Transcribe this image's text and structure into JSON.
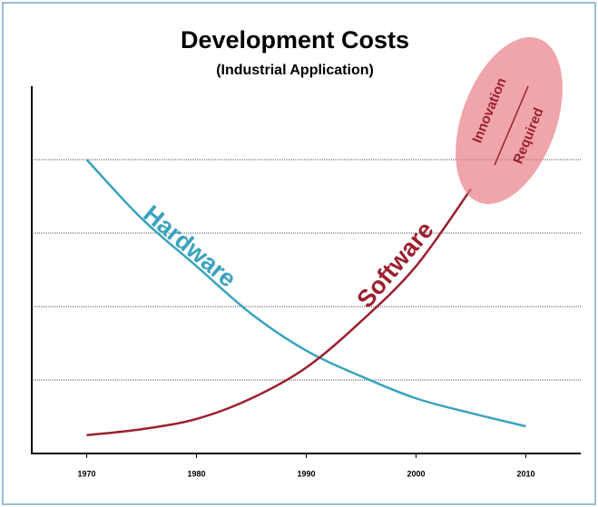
{
  "chart_data": {
    "type": "line",
    "title": "Development Costs",
    "subtitle": "(Industrial Application)",
    "x": [
      1970,
      1975,
      1980,
      1985,
      1990,
      1995,
      2000,
      2005,
      2010
    ],
    "series": [
      {
        "name": "Hardware",
        "color": "#3aa3bd",
        "values": [
          4.0,
          3.2,
          2.55,
          1.9,
          1.4,
          1.05,
          0.75,
          0.55,
          0.37
        ]
      },
      {
        "name": "Software",
        "color": "#9b2030",
        "values": [
          0.25,
          0.33,
          0.47,
          0.75,
          1.17,
          1.8,
          2.55,
          3.6,
          null
        ]
      }
    ],
    "xlim": [
      1965,
      2015
    ],
    "xticks": [
      1970,
      1980,
      1990,
      2000,
      2010
    ],
    "ylim": [
      0,
      5
    ],
    "yticks": [
      1,
      2,
      3,
      4
    ],
    "grid": true,
    "annotations": [
      "Innovation",
      "Required"
    ]
  }
}
